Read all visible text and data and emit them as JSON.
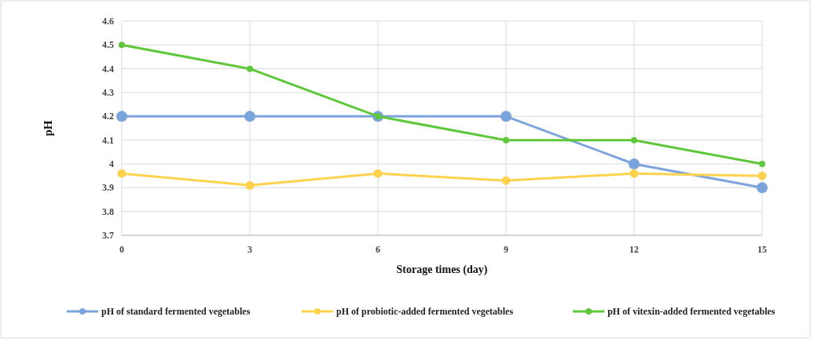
{
  "chart_data": {
    "type": "line",
    "xlabel": "Storage times (day)",
    "ylabel": "pH",
    "x": [
      0,
      3,
      6,
      9,
      12,
      15
    ],
    "series": [
      {
        "name": "pH of standard fermented vegetables",
        "color": "#7ba3dc",
        "values": [
          4.2,
          4.2,
          4.2,
          4.2,
          4.0,
          3.9
        ]
      },
      {
        "name": "pH of probiotic-added fermented vegetables",
        "color": "#ffd24d",
        "values": [
          3.96,
          3.91,
          3.96,
          3.93,
          3.96,
          3.95
        ]
      },
      {
        "name": "pH of vitexin-added fermented vegetables",
        "color": "#5ec83a",
        "values": [
          4.5,
          4.4,
          4.2,
          4.1,
          4.1,
          4.0
        ]
      }
    ],
    "xlim": [
      0,
      15
    ],
    "xticks": [
      0,
      3,
      6,
      9,
      12,
      15
    ],
    "ylim": [
      3.7,
      4.6
    ],
    "yticks": [
      3.7,
      3.8,
      3.9,
      4,
      4.1,
      4.2,
      4.3,
      4.4,
      4.5,
      4.6
    ],
    "grid": true,
    "legend": "bottom",
    "marker": "circle",
    "line_style": "solid"
  }
}
